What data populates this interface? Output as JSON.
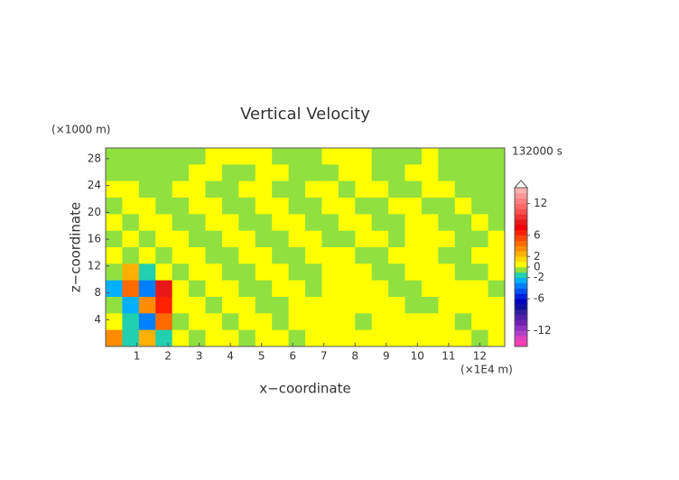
{
  "chart_data": {
    "type": "contour",
    "title": "Vertical Velocity",
    "x_label": "x−coordinate",
    "y_label": "z−coordinate",
    "x_unit": "(×1E4 m)",
    "y_unit": "(×1000 m)",
    "time_label": "132000 s",
    "xlim": [
      0,
      12.8
    ],
    "ylim": [
      0,
      29.6
    ],
    "xticks": [
      1,
      2,
      3,
      4,
      5,
      6,
      7,
      8,
      9,
      10,
      11,
      12
    ],
    "yticks": [
      4,
      8,
      12,
      16,
      20,
      24,
      28
    ],
    "clim": [
      -15,
      15
    ],
    "cticks": [
      12,
      6,
      2,
      0,
      -2,
      -6,
      -12
    ],
    "colors": [
      "#ff3cb4",
      "#e040c0",
      "#b040c8",
      "#9030c0",
      "#7020b0",
      "#5020a8",
      "#3020a0",
      "#1010a0",
      "#0000c0",
      "#0020e0",
      "#0050f0",
      "#0080ff",
      "#00b0ff",
      "#20d0b0",
      "#90e040",
      "#ffff00",
      "#ffd800",
      "#ffb000",
      "#ff8c00",
      "#ff6a00",
      "#ff4800",
      "#ff2000",
      "#f00000",
      "#e81818",
      "#f03030",
      "#f85050",
      "#ff6868",
      "#ff8080",
      "#ff9898",
      "#ffb0b0"
    ],
    "z": [
      [
        -0.5,
        -0.5,
        -0.5,
        -0.5,
        -0.5,
        -0.5,
        0.5,
        0.5,
        0.5,
        0.5,
        -0.5,
        -0.5,
        -0.5,
        0.5,
        0.5,
        0.5,
        -0.5,
        -0.5,
        -0.5,
        0.5,
        -0.5,
        -0.5,
        -0.5,
        -0.5
      ],
      [
        -0.5,
        -0.5,
        -0.5,
        -0.5,
        -0.5,
        0.5,
        0.5,
        -0.5,
        -0.5,
        0.5,
        0.5,
        -0.5,
        -0.5,
        -0.5,
        0.5,
        0.5,
        -0.5,
        -0.5,
        0.5,
        0.5,
        -0.5,
        -0.5,
        -0.5,
        -0.5
      ],
      [
        0.5,
        0.5,
        -0.5,
        -0.5,
        0.5,
        0.5,
        -0.5,
        -0.5,
        0.5,
        0.5,
        -0.5,
        -0.5,
        0.5,
        0.5,
        -0.5,
        0.5,
        0.5,
        -0.5,
        -0.5,
        0.5,
        0.5,
        -0.5,
        -0.5,
        -0.5
      ],
      [
        -0.5,
        0.5,
        0.5,
        -0.5,
        -0.5,
        0.5,
        0.5,
        -0.5,
        -0.5,
        0.5,
        0.5,
        -0.5,
        -0.5,
        0.5,
        0.5,
        -0.5,
        -0.5,
        0.5,
        0.5,
        -0.5,
        -0.5,
        0.5,
        -0.5,
        -0.5
      ],
      [
        0.5,
        -0.5,
        0.5,
        0.5,
        -0.5,
        -0.5,
        0.5,
        0.5,
        -0.5,
        -0.5,
        0.5,
        0.5,
        -0.5,
        -0.5,
        0.5,
        0.5,
        -0.5,
        -0.5,
        0.5,
        0.5,
        -0.5,
        -0.5,
        0.5,
        -0.5
      ],
      [
        -0.5,
        0.5,
        -0.5,
        0.5,
        0.5,
        -0.5,
        -0.5,
        0.5,
        0.5,
        -0.5,
        -0.5,
        0.5,
        0.5,
        -0.5,
        -0.5,
        0.5,
        0.5,
        -0.5,
        0.5,
        0.5,
        0.5,
        -0.5,
        -0.5,
        0.5
      ],
      [
        0.5,
        -0.5,
        0.5,
        -0.5,
        0.5,
        0.5,
        -0.5,
        -0.5,
        0.5,
        0.5,
        -0.5,
        -0.5,
        0.5,
        0.5,
        0.5,
        -0.5,
        -0.5,
        0.5,
        0.5,
        0.5,
        -0.5,
        -0.5,
        0.5,
        0.5
      ],
      [
        -0.5,
        2.5,
        -1.5,
        0.5,
        -0.5,
        0.5,
        0.5,
        -0.5,
        -0.5,
        0.5,
        0.5,
        -0.5,
        -0.5,
        0.5,
        0.5,
        0.5,
        -0.5,
        -0.5,
        0.5,
        0.5,
        0.5,
        -0.5,
        -0.5,
        0.5
      ],
      [
        -2.5,
        4.5,
        -3.5,
        8.5,
        0.5,
        -0.5,
        0.5,
        0.5,
        -0.5,
        -0.5,
        0.5,
        0.5,
        -0.5,
        0.5,
        0.5,
        0.5,
        0.5,
        -0.5,
        -0.5,
        0.5,
        0.5,
        0.5,
        0.5,
        -0.5
      ],
      [
        -0.5,
        -2.5,
        3.5,
        6.5,
        0.5,
        0.5,
        -0.5,
        0.5,
        0.5,
        -0.5,
        -0.5,
        0.5,
        0.5,
        0.5,
        0.5,
        0.5,
        0.5,
        0.5,
        -0.5,
        -0.5,
        0.5,
        0.5,
        0.5,
        0.5
      ],
      [
        0.5,
        -1.5,
        -3.5,
        4.5,
        -0.5,
        0.5,
        0.5,
        -0.5,
        0.5,
        0.5,
        -0.5,
        0.5,
        0.5,
        0.5,
        0.5,
        -0.5,
        0.5,
        0.5,
        0.5,
        0.5,
        0.5,
        -0.5,
        0.5,
        0.5
      ],
      [
        3.5,
        -1.5,
        2.5,
        -1.5,
        0.5,
        -0.5,
        0.5,
        0.5,
        -0.5,
        0.5,
        0.5,
        -0.5,
        0.5,
        0.5,
        0.5,
        0.5,
        0.5,
        0.5,
        0.5,
        0.5,
        0.5,
        0.5,
        -0.5,
        0.5
      ]
    ]
  }
}
